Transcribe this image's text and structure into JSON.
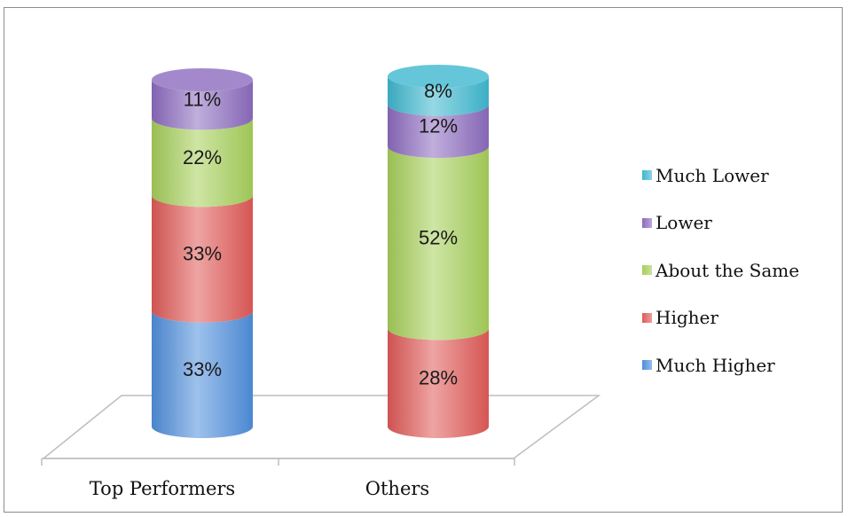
{
  "chart_data": {
    "type": "bar",
    "stacked": true,
    "style": "3d-cylinder",
    "categories": [
      "Top Performers",
      "Others"
    ],
    "series": [
      {
        "name": "Much Higher",
        "color": "#4f8fdc",
        "values": [
          33,
          0
        ]
      },
      {
        "name": "Higher",
        "color": "#e05a57",
        "values": [
          33,
          28
        ]
      },
      {
        "name": "About the Same",
        "color": "#a6cf5a",
        "values": [
          22,
          52
        ]
      },
      {
        "name": "Lower",
        "color": "#8c6bbf",
        "values": [
          11,
          12
        ]
      },
      {
        "name": "Much Lower",
        "color": "#3fb8cf",
        "values": [
          0,
          8
        ]
      }
    ],
    "data_labels": [
      [
        "33%",
        "33%",
        "22%",
        "11%",
        ""
      ],
      [
        "",
        "28%",
        "52%",
        "12%",
        "8%"
      ]
    ],
    "legend_order": [
      "Much Lower",
      "Lower",
      "About the Same",
      "Higher",
      "Much Higher"
    ],
    "legend_position": "right",
    "ylim": [
      0,
      100
    ],
    "unit": "%",
    "grid": false,
    "title": "",
    "xlabel": "",
    "ylabel": ""
  }
}
